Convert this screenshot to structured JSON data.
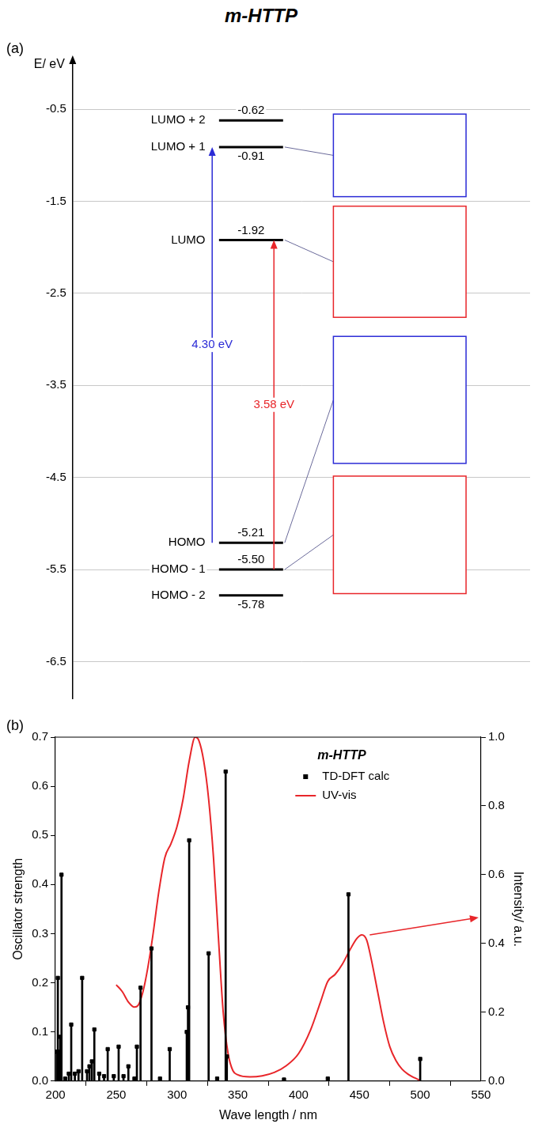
{
  "chart_data": [
    {
      "type": "energy_levels",
      "panel": "(a)",
      "title": "m-HTTP",
      "ylabel": "E/ eV",
      "categories": [
        "LUMO + 2",
        "LUMO + 1",
        "LUMO",
        "HOMO",
        "HOMO - 1",
        "HOMO - 2"
      ],
      "values": [
        -0.62,
        -0.91,
        -1.92,
        -5.21,
        -5.5,
        -5.78
      ],
      "value_labels": [
        "-0.62",
        "-0.91",
        "-1.92",
        "-5.21",
        "-5.50",
        "-5.78"
      ],
      "data_labels": true,
      "transitions": [
        {
          "from": "HOMO",
          "to": "LUMO + 1",
          "label": "4.30 eV",
          "color": "#2b2bd6"
        },
        {
          "from": "HOMO - 1",
          "to": "LUMO",
          "label": "3.58 eV",
          "color": "#e8262a"
        }
      ],
      "ylim": [
        -6.9,
        0
      ],
      "yticks": [
        -0.5,
        -1.5,
        -2.5,
        -3.5,
        -4.5,
        -5.5,
        -6.5
      ],
      "grid": true
    },
    {
      "type": "bar",
      "panel": "(b)",
      "title": "m-HTTP",
      "xlabel": "Wave length / nm",
      "ylabel": "Oscillator strength",
      "y2label": "Intensity/ a.u.",
      "xlim": [
        200,
        550
      ],
      "xticks": [
        200,
        250,
        300,
        350,
        400,
        450,
        500,
        550
      ],
      "ylim": [
        0,
        0.7
      ],
      "yticks": [
        {
          "value": 0,
          "label": "0.0"
        },
        0.1,
        0.2,
        0.3,
        0.4,
        0.5,
        0.6,
        0.7
      ],
      "y2lim": [
        0,
        1
      ],
      "y2ticks": [
        {
          "value": 0,
          "label": "0.0"
        },
        0.2,
        0.4,
        0.6,
        0.8,
        {
          "value": 1,
          "label": "1.0"
        }
      ],
      "grid": false,
      "legend": "upper right",
      "series": [
        {
          "name": "TD-DFT calc",
          "type": "bar",
          "marker": "square",
          "color": "#000000",
          "x": [
            201,
            202,
            203,
            204,
            205,
            208,
            211,
            213,
            216,
            219,
            222,
            226,
            228,
            230,
            232,
            236,
            240,
            243,
            248,
            252,
            256,
            260,
            265,
            267,
            270,
            279,
            286,
            294,
            308,
            309,
            310,
            326,
            333,
            340,
            341,
            388,
            424,
            441,
            500
          ],
          "values": [
            0.06,
            0.21,
            0.06,
            0.09,
            0.42,
            0.005,
            0.015,
            0.115,
            0.015,
            0.02,
            0.21,
            0.02,
            0.03,
            0.04,
            0.105,
            0.015,
            0.01,
            0.065,
            0.01,
            0.07,
            0.01,
            0.03,
            0.005,
            0.07,
            0.19,
            0.27,
            0.005,
            0.065,
            0.1,
            0.15,
            0.49,
            0.26,
            0.005,
            0.63,
            0.05,
            0.003,
            0.005,
            0.38,
            0.045
          ]
        },
        {
          "name": "UV-vis",
          "type": "line",
          "axis": "y2",
          "color": "#e8262a",
          "x": [
            250,
            255,
            260,
            265,
            268,
            272,
            276,
            280,
            285,
            290,
            295,
            300,
            305,
            310,
            315,
            318,
            322,
            326,
            330,
            334,
            338,
            342,
            346,
            350,
            360,
            370,
            380,
            390,
            400,
            410,
            418,
            424,
            430,
            436,
            442,
            448,
            452,
            456,
            460,
            465,
            470,
            475,
            480,
            485,
            490,
            495,
            500
          ],
          "values": [
            0.28,
            0.26,
            0.23,
            0.215,
            0.22,
            0.26,
            0.33,
            0.42,
            0.55,
            0.65,
            0.69,
            0.74,
            0.82,
            0.93,
            1.0,
            0.99,
            0.93,
            0.82,
            0.65,
            0.42,
            0.2,
            0.08,
            0.03,
            0.018,
            0.012,
            0.015,
            0.025,
            0.045,
            0.08,
            0.15,
            0.23,
            0.29,
            0.31,
            0.34,
            0.38,
            0.415,
            0.425,
            0.41,
            0.35,
            0.26,
            0.17,
            0.1,
            0.06,
            0.035,
            0.02,
            0.01,
            0.002
          ]
        }
      ]
    }
  ]
}
